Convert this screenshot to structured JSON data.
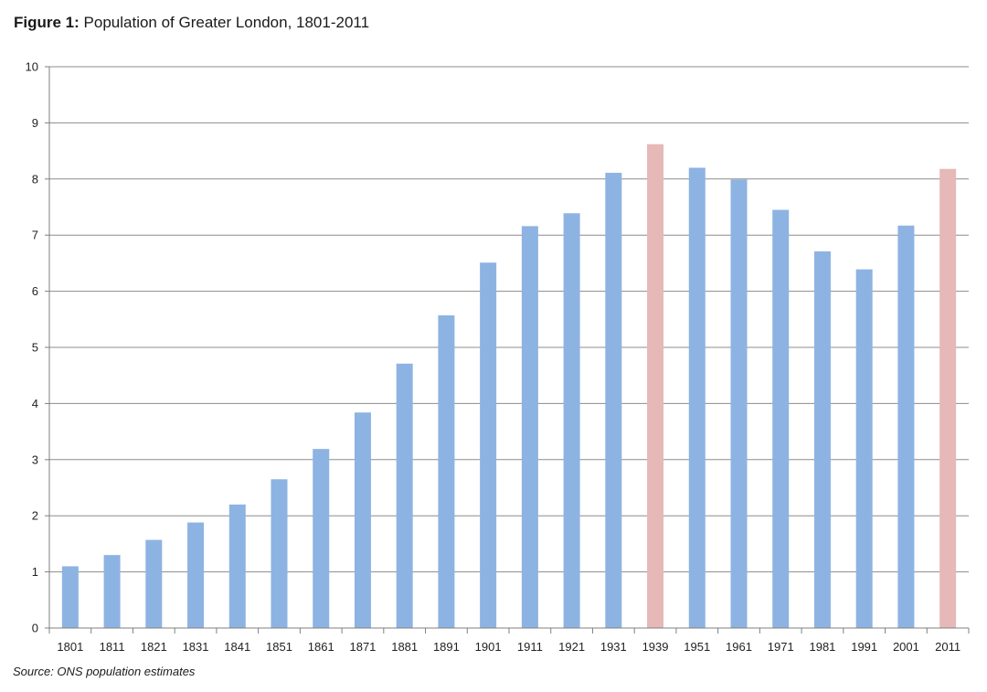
{
  "figure": {
    "label": "Figure 1:",
    "title": "Population of Greater London, 1801-2011",
    "source": "Source: ONS population estimates"
  },
  "colors": {
    "bar": "#8db3e2",
    "highlight": "#e6b8b8",
    "grid": "#8c8c8c",
    "axis": "#7f7f7f"
  },
  "chart_data": {
    "type": "bar",
    "title": "Population of Greater London, 1801-2011",
    "xlabel": "",
    "ylabel": "",
    "ylim": [
      0,
      10
    ],
    "yticks": [
      0,
      1,
      2,
      3,
      4,
      5,
      6,
      7,
      8,
      9,
      10
    ],
    "grid": true,
    "categories": [
      "1801",
      "1811",
      "1821",
      "1831",
      "1841",
      "1851",
      "1861",
      "1871",
      "1881",
      "1891",
      "1901",
      "1911",
      "1921",
      "1931",
      "1939",
      "1951",
      "1961",
      "1971",
      "1981",
      "1991",
      "2001",
      "2011"
    ],
    "values": [
      1.1,
      1.3,
      1.57,
      1.88,
      2.2,
      2.65,
      3.19,
      3.84,
      4.71,
      5.57,
      6.51,
      7.16,
      7.39,
      8.11,
      8.62,
      8.2,
      7.99,
      7.45,
      6.71,
      6.39,
      7.17,
      8.18
    ],
    "highlighted": [
      "1939",
      "2011"
    ]
  }
}
